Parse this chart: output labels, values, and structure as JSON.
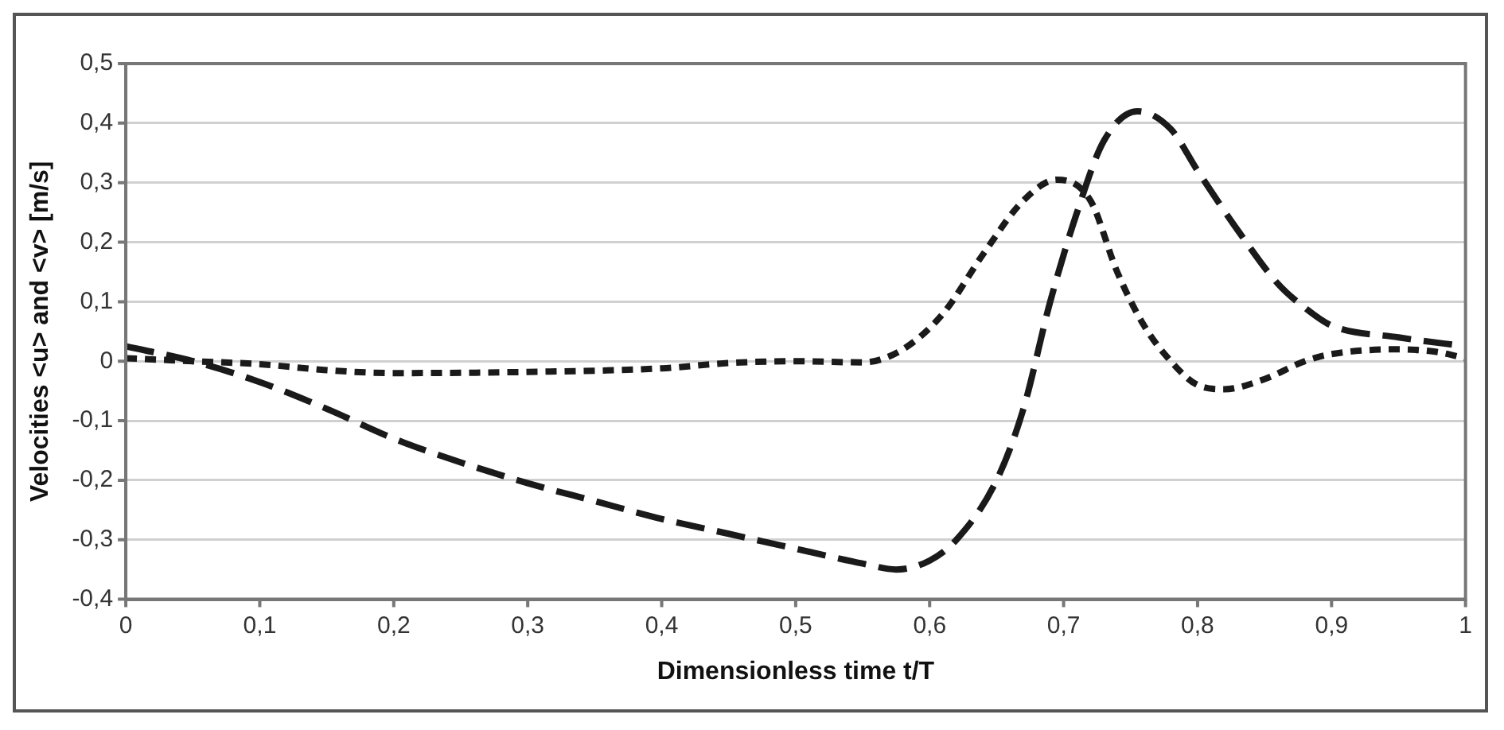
{
  "chart_data": {
    "type": "line",
    "xlabel": "Dimensionless time t/T",
    "ylabel": "Velocities <u> and <v> [m/s]",
    "xlim": [
      0,
      1
    ],
    "ylim": [
      -0.4,
      0.5
    ],
    "xticks": [
      0,
      {
        "value": 0.1,
        "label": "0,1"
      },
      {
        "value": 0.2,
        "label": "0,2"
      },
      {
        "value": 0.3,
        "label": "0,3"
      },
      {
        "value": 0.4,
        "label": "0,4"
      },
      {
        "value": 0.5,
        "label": "0,5"
      },
      {
        "value": 0.6,
        "label": "0,6"
      },
      {
        "value": 0.7,
        "label": "0,7"
      },
      {
        "value": 0.8,
        "label": "0,8"
      },
      {
        "value": 0.9,
        "label": "0,9"
      },
      1
    ],
    "yticks": [
      {
        "value": -0.4,
        "label": "-0,4"
      },
      {
        "value": -0.3,
        "label": "-0,3"
      },
      {
        "value": -0.2,
        "label": "-0,2"
      },
      {
        "value": -0.1,
        "label": "-0,1"
      },
      0,
      {
        "value": 0.1,
        "label": "0,1"
      },
      {
        "value": 0.2,
        "label": "0,2"
      },
      {
        "value": 0.3,
        "label": "0,3"
      },
      {
        "value": 0.4,
        "label": "0,4"
      },
      {
        "value": 0.5,
        "label": "0,5"
      }
    ],
    "grid": "y",
    "legend": false,
    "marker": "none",
    "series": [
      {
        "color": "#1a1a1a",
        "line_style": "dashed",
        "x": [
          0,
          0.05,
          0.1,
          0.15,
          0.2,
          0.25,
          0.3,
          0.35,
          0.4,
          0.45,
          0.5,
          0.55,
          0.575,
          0.6,
          0.62,
          0.65,
          0.67,
          0.69,
          0.71,
          0.73,
          0.755,
          0.78,
          0.8,
          0.83,
          0.86,
          0.88,
          0.9,
          0.95,
          1
        ],
        "values": [
          0.025,
          0,
          -0.035,
          -0.08,
          -0.13,
          -0.17,
          -0.205,
          -0.235,
          -0.265,
          -0.29,
          -0.315,
          -0.34,
          -0.35,
          -0.335,
          -0.3,
          -0.2,
          -0.08,
          0.1,
          0.25,
          0.37,
          0.42,
          0.39,
          0.32,
          0.22,
          0.13,
          0.09,
          0.06,
          0.04,
          0.025
        ]
      },
      {
        "color": "#1a1a1a",
        "line_style": "dotted",
        "x": [
          0,
          0.05,
          0.1,
          0.15,
          0.2,
          0.3,
          0.4,
          0.45,
          0.5,
          0.55,
          0.58,
          0.61,
          0.64,
          0.67,
          0.695,
          0.72,
          0.74,
          0.76,
          0.78,
          0.8,
          0.82,
          0.85,
          0.88,
          0.9,
          0.95,
          0.98,
          1
        ],
        "values": [
          0.005,
          0,
          -0.005,
          -0.015,
          -0.02,
          -0.018,
          -0.012,
          -0.003,
          0,
          -0.002,
          0.02,
          0.08,
          0.18,
          0.27,
          0.305,
          0.27,
          0.15,
          0.06,
          0,
          -0.04,
          -0.047,
          -0.03,
          0,
          0.012,
          0.02,
          0.015,
          0.005
        ]
      }
    ]
  }
}
